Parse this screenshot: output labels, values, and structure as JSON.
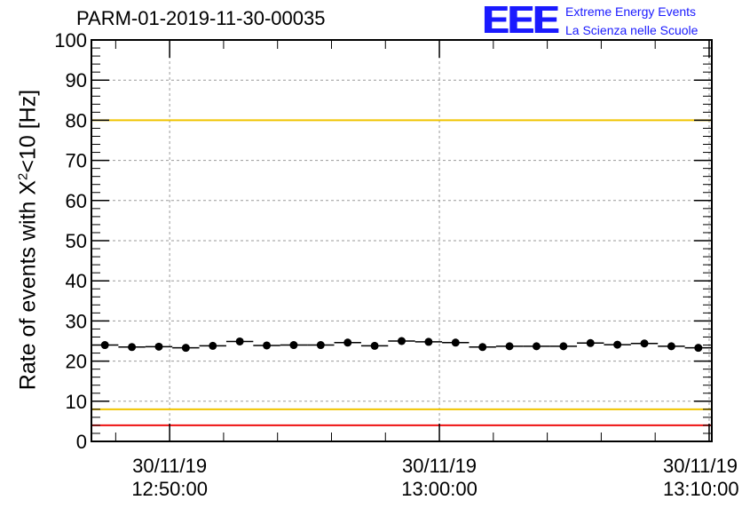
{
  "chart_data": {
    "type": "scatter",
    "title": "PARM-01-2019-11-30-00035",
    "ylabel": "Rate of events with χ²<10 [Hz]",
    "ylabel_main": "Rate of events with X",
    "ylabel_sup": "2",
    "ylabel_tail": "<10 [Hz]",
    "xlabel": "",
    "ylim": [
      0,
      100
    ],
    "yticks": [
      "0",
      "10",
      "20",
      "30",
      "40",
      "50",
      "60",
      "70",
      "80",
      "90",
      "100"
    ],
    "xlim": [
      "12:47:06",
      "13:10:06"
    ],
    "xtick_labels": [
      {
        "date": "30/11/19",
        "time": "12:50:00"
      },
      {
        "date": "30/11/19",
        "time": "13:00:00"
      },
      {
        "date": "30/11/19",
        "time": "13:10:00"
      }
    ],
    "grid": true,
    "reference_lines": [
      {
        "y": 100,
        "color": "#ee1111"
      },
      {
        "y": 80,
        "color": "#f0c400"
      },
      {
        "y": 8,
        "color": "#f0c400"
      },
      {
        "y": 4,
        "color": "#ee1111"
      }
    ],
    "series": [
      {
        "x": [
          "12:47:36",
          "12:48:36",
          "12:49:36",
          "12:50:36",
          "12:51:36",
          "12:52:36",
          "12:53:36",
          "12:54:36",
          "12:55:36",
          "12:56:36",
          "12:57:36",
          "12:58:36",
          "12:59:36",
          "13:00:36",
          "13:01:36",
          "13:02:36",
          "13:03:36",
          "13:04:36",
          "13:05:36",
          "13:06:36",
          "13:07:36",
          "13:08:36",
          "13:09:36"
        ],
        "values": [
          24.0,
          23.5,
          23.6,
          23.3,
          23.8,
          24.9,
          23.9,
          24.0,
          24.0,
          24.6,
          23.8,
          25.0,
          24.8,
          24.6,
          23.5,
          23.7,
          23.7,
          23.7,
          24.5,
          24.1,
          24.4,
          23.7,
          23.3
        ],
        "bin_width_seconds": 60,
        "color": "#000000"
      }
    ]
  },
  "logo": {
    "mark": "EEE",
    "line1": "Extreme Energy Events",
    "line2": "La Scienza nelle Scuole"
  }
}
